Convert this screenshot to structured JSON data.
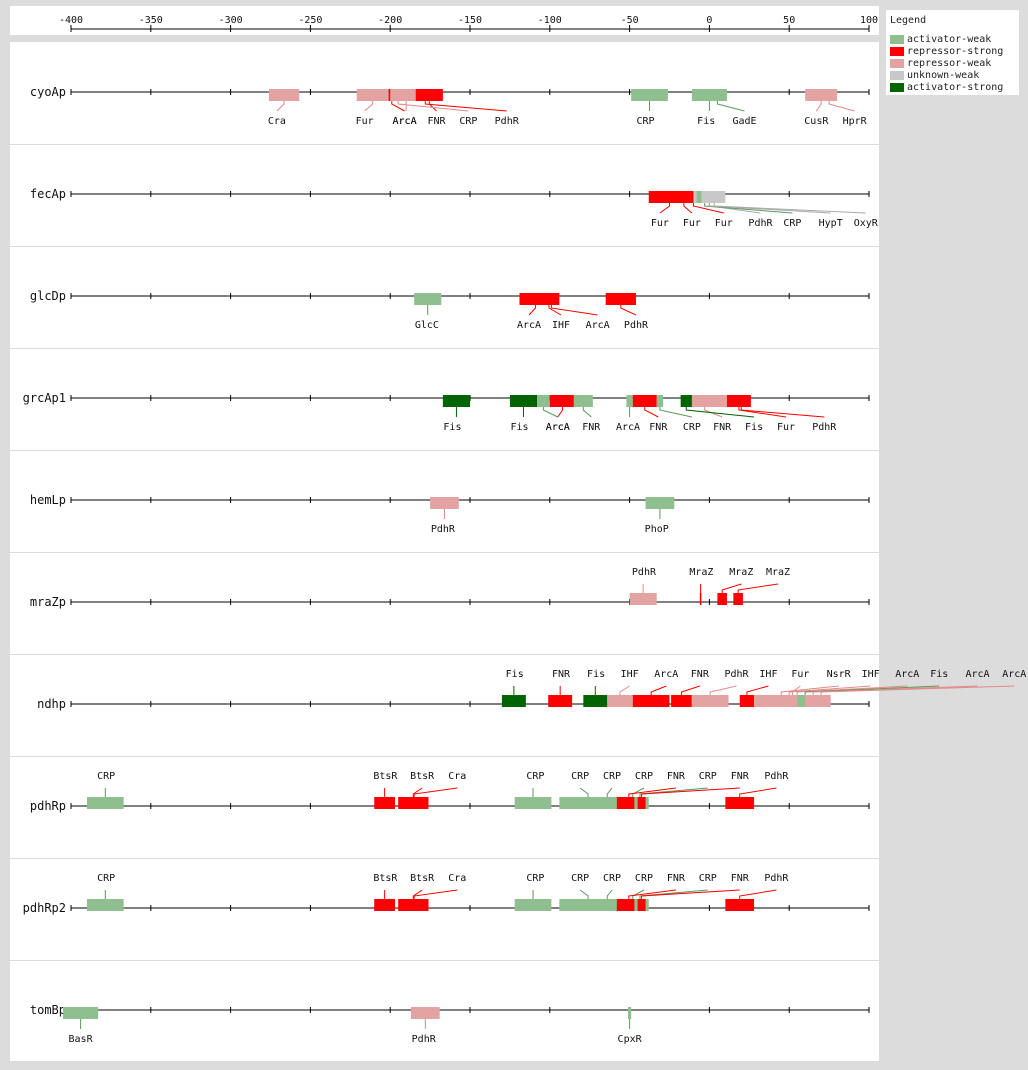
{
  "legend": {
    "title": "Legend",
    "items": [
      {
        "label": "activator-weak",
        "color": "#8fbf8f"
      },
      {
        "label": "repressor-strong",
        "color": "#ff0000"
      },
      {
        "label": "repressor-weak",
        "color": "#e3a3a3"
      },
      {
        "label": "unknown-weak",
        "color": "#c8c8c8"
      },
      {
        "label": "activator-strong",
        "color": "#006400"
      }
    ]
  },
  "axis": {
    "min": -400,
    "max": 100,
    "ticks": [
      -400,
      -350,
      -300,
      -250,
      -200,
      -150,
      -100,
      -50,
      0,
      50,
      100
    ]
  },
  "tracks": [
    {
      "name": "cyoAp",
      "sites": [
        {
          "tf": "Cra",
          "start": -276,
          "end": -257,
          "type": "repressor-weak",
          "label_pos": -271,
          "side": "below"
        },
        {
          "tf": "Fur",
          "start": -221,
          "end": -201,
          "type": "repressor-weak",
          "label_pos": -216,
          "side": "below"
        },
        {
          "tf": "ArcA",
          "start": -201,
          "end": -197,
          "type": "repressor-strong",
          "label_pos": -191,
          "side": "below"
        },
        {
          "tf": "ArcA",
          "start": -197,
          "end": -183,
          "type": "repressor-weak",
          "label_pos": -191,
          "side": "below"
        },
        {
          "tf": "FNR",
          "start": -184,
          "end": -167,
          "type": "repressor-strong",
          "label_pos": -171,
          "side": "below"
        },
        {
          "tf": "CRP",
          "start": -200,
          "end": -190,
          "type": "repressor-weak",
          "label_pos": -151,
          "side": "below"
        },
        {
          "tf": "PdhR",
          "start": -183,
          "end": -173,
          "type": "repressor-strong",
          "label_pos": -127,
          "side": "below"
        },
        {
          "tf": "CRP",
          "start": -49,
          "end": -26,
          "type": "activator-weak",
          "label_pos": -40,
          "side": "below"
        },
        {
          "tf": "Fis",
          "start": -11,
          "end": 11,
          "type": "activator-weak",
          "label_pos": -2,
          "side": "below"
        },
        {
          "tf": "GadE",
          "start": 0,
          "end": 10,
          "type": "activator-weak",
          "label_pos": 22,
          "side": "below"
        },
        {
          "tf": "CusR",
          "start": 60,
          "end": 80,
          "type": "repressor-weak",
          "label_pos": 67,
          "side": "below"
        },
        {
          "tf": "HprR",
          "start": 70,
          "end": 80,
          "type": "repressor-weak",
          "label_pos": 91,
          "side": "below"
        }
      ]
    },
    {
      "name": "fecAp",
      "sites": [
        {
          "tf": "Fur",
          "start": -38,
          "end": -12,
          "type": "repressor-strong",
          "label_pos": -31,
          "side": "below"
        },
        {
          "tf": "Fur",
          "start": -20,
          "end": -12,
          "type": "repressor-strong",
          "label_pos": -11,
          "side": "below"
        },
        {
          "tf": "Fur",
          "start": -12,
          "end": -8,
          "type": "repressor-strong",
          "label_pos": 9,
          "side": "below"
        },
        {
          "tf": "PdhR",
          "start": -10,
          "end": 10,
          "type": "unknown-weak",
          "label_pos": 32,
          "side": "below"
        },
        {
          "tf": "CRP",
          "start": -8,
          "end": 2,
          "type": "activator-weak",
          "label_pos": 52,
          "side": "below"
        },
        {
          "tf": "HypT",
          "start": -5,
          "end": 5,
          "type": "unknown-weak",
          "label_pos": 76,
          "side": "below"
        },
        {
          "tf": "OxyR",
          "start": -2,
          "end": 8,
          "type": "unknown-weak",
          "label_pos": 98,
          "side": "below"
        }
      ]
    },
    {
      "name": "glcDp",
      "sites": [
        {
          "tf": "GlcC",
          "start": -185,
          "end": -168,
          "type": "activator-weak",
          "label_pos": -177,
          "side": "below"
        },
        {
          "tf": "ArcA",
          "start": -119,
          "end": -99,
          "type": "repressor-strong",
          "label_pos": -113,
          "side": "below"
        },
        {
          "tf": "IHF",
          "start": -105,
          "end": -96,
          "type": "repressor-strong",
          "label_pos": -93,
          "side": "below"
        },
        {
          "tf": "ArcA",
          "start": -104,
          "end": -94,
          "type": "repressor-strong",
          "label_pos": -70,
          "side": "below"
        },
        {
          "tf": "PdhR",
          "start": -65,
          "end": -46,
          "type": "repressor-strong",
          "label_pos": -46,
          "side": "below"
        }
      ]
    },
    {
      "name": "grcAp1",
      "sites": [
        {
          "tf": "Fis",
          "start": -167,
          "end": -150,
          "type": "activator-strong",
          "label_pos": -161,
          "side": "below"
        },
        {
          "tf": "Fis",
          "start": -125,
          "end": -108,
          "type": "activator-strong",
          "label_pos": -119,
          "side": "below"
        },
        {
          "tf": "ArcA",
          "start": -108,
          "end": -100,
          "type": "activator-weak",
          "label_pos": -95,
          "side": "below"
        },
        {
          "tf": "ArcA",
          "start": -100,
          "end": -84,
          "type": "repressor-strong",
          "label_pos": -95,
          "side": "below"
        },
        {
          "tf": "FNR",
          "start": -85,
          "end": -73,
          "type": "activator-weak",
          "label_pos": -74,
          "side": "below"
        },
        {
          "tf": "ArcA",
          "start": -52,
          "end": -48,
          "type": "activator-weak",
          "label_pos": -51,
          "side": "below"
        },
        {
          "tf": "FNR",
          "start": -48,
          "end": -33,
          "type": "repressor-strong",
          "label_pos": -32,
          "side": "below"
        },
        {
          "tf": "CRP",
          "start": -33,
          "end": -29,
          "type": "activator-weak",
          "label_pos": -11,
          "side": "below"
        },
        {
          "tf": "FNR",
          "start": -17,
          "end": 11,
          "type": "repressor-weak",
          "label_pos": 8,
          "side": "below"
        },
        {
          "tf": "Fis",
          "start": -18,
          "end": -11,
          "type": "activator-strong",
          "label_pos": 28,
          "side": "below"
        },
        {
          "tf": "Fur",
          "start": 11,
          "end": 26,
          "type": "repressor-strong",
          "label_pos": 48,
          "side": "below"
        },
        {
          "tf": "PdhR",
          "start": 15,
          "end": 25,
          "type": "repressor-strong",
          "label_pos": 72,
          "side": "below"
        }
      ]
    },
    {
      "name": "hemLp",
      "sites": [
        {
          "tf": "PdhR",
          "start": -175,
          "end": -157,
          "type": "repressor-weak",
          "label_pos": -167,
          "side": "below"
        },
        {
          "tf": "PhoP",
          "start": -40,
          "end": -22,
          "type": "activator-weak",
          "label_pos": -33,
          "side": "below"
        }
      ]
    },
    {
      "name": "mraZp",
      "sites": [
        {
          "tf": "PdhR",
          "start": -50,
          "end": -33,
          "type": "repressor-weak",
          "label_pos": -41,
          "side": "above"
        },
        {
          "tf": "MraZ",
          "start": -6,
          "end": -5,
          "type": "repressor-strong",
          "label_pos": -5,
          "side": "above"
        },
        {
          "tf": "MraZ",
          "start": 5,
          "end": 11,
          "type": "repressor-strong",
          "label_pos": 20,
          "side": "above"
        },
        {
          "tf": "MraZ",
          "start": 15,
          "end": 21,
          "type": "repressor-strong",
          "label_pos": 43,
          "side": "above"
        }
      ]
    },
    {
      "name": "ndhp",
      "sites": [
        {
          "tf": "Fis",
          "start": -130,
          "end": -115,
          "type": "activator-strong",
          "label_pos": -122,
          "side": "above"
        },
        {
          "tf": "FNR",
          "start": -101,
          "end": -86,
          "type": "repressor-strong",
          "label_pos": -93,
          "side": "above"
        },
        {
          "tf": "Fis",
          "start": -79,
          "end": -64,
          "type": "activator-strong",
          "label_pos": -71,
          "side": "above"
        },
        {
          "tf": "IHF",
          "start": -64,
          "end": -48,
          "type": "repressor-weak",
          "label_pos": -50,
          "side": "above"
        },
        {
          "tf": "ArcA",
          "start": -48,
          "end": -25,
          "type": "repressor-strong",
          "label_pos": -27,
          "side": "above"
        },
        {
          "tf": "FNR",
          "start": -24,
          "end": -11,
          "type": "repressor-strong",
          "label_pos": -6,
          "side": "above"
        },
        {
          "tf": "PdhR",
          "start": -11,
          "end": 12,
          "type": "repressor-weak",
          "label_pos": 17,
          "side": "above"
        },
        {
          "tf": "IHF",
          "start": 19,
          "end": 28,
          "type": "repressor-strong",
          "label_pos": 37,
          "side": "above"
        },
        {
          "tf": "Fur",
          "start": 28,
          "end": 76,
          "type": "repressor-weak",
          "label_pos": 57,
          "side": "above"
        },
        {
          "tf": "NsrR",
          "start": 40,
          "end": 50,
          "type": "repressor-weak",
          "label_pos": 81,
          "side": "above"
        },
        {
          "tf": "IHF",
          "start": 45,
          "end": 55,
          "type": "repressor-weak",
          "label_pos": 101,
          "side": "above"
        },
        {
          "tf": "ArcA",
          "start": 50,
          "end": 60,
          "type": "repressor-weak",
          "label_pos": 124,
          "side": "above"
        },
        {
          "tf": "Fis",
          "start": 55,
          "end": 65,
          "type": "activator-weak",
          "label_pos": 144,
          "side": "above"
        },
        {
          "tf": "ArcA",
          "start": 60,
          "end": 70,
          "type": "repressor-weak",
          "label_pos": 168,
          "side": "above"
        },
        {
          "tf": "ArcA",
          "start": 65,
          "end": 75,
          "type": "repressor-weak",
          "label_pos": 191,
          "side": "above"
        }
      ]
    },
    {
      "name": "pdhRp",
      "sites": [
        {
          "tf": "CRP",
          "start": -390,
          "end": -367,
          "type": "activator-weak",
          "label_pos": -378,
          "side": "above"
        },
        {
          "tf": "BtsR",
          "start": -210,
          "end": -197,
          "type": "repressor-strong",
          "label_pos": -203,
          "side": "above"
        },
        {
          "tf": "BtsR",
          "start": -195,
          "end": -176,
          "type": "repressor-strong",
          "label_pos": -180,
          "side": "above"
        },
        {
          "tf": "Cra",
          "start": -190,
          "end": -180,
          "type": "repressor-strong",
          "label_pos": -158,
          "side": "above"
        },
        {
          "tf": "CRP",
          "start": -122,
          "end": -99,
          "type": "activator-weak",
          "label_pos": -109,
          "side": "above"
        },
        {
          "tf": "CRP",
          "start": -94,
          "end": -58,
          "type": "activator-weak",
          "label_pos": -81,
          "side": "above"
        },
        {
          "tf": "CRP",
          "start": -70,
          "end": -58,
          "type": "activator-weak",
          "label_pos": -61,
          "side": "above"
        },
        {
          "tf": "CRP",
          "start": -58,
          "end": -38,
          "type": "activator-weak",
          "label_pos": -41,
          "side": "above"
        },
        {
          "tf": "FNR",
          "start": -58,
          "end": -43,
          "type": "repressor-strong",
          "label_pos": -21,
          "side": "above"
        },
        {
          "tf": "CRP",
          "start": -47,
          "end": -40,
          "type": "activator-weak",
          "label_pos": -1,
          "side": "above"
        },
        {
          "tf": "FNR",
          "start": -45,
          "end": -40,
          "type": "repressor-strong",
          "label_pos": 19,
          "side": "above"
        },
        {
          "tf": "PdhR",
          "start": 10,
          "end": 28,
          "type": "repressor-strong",
          "label_pos": 42,
          "side": "above"
        }
      ]
    },
    {
      "name": "pdhRp2",
      "sites": [
        {
          "tf": "CRP",
          "start": -390,
          "end": -367,
          "type": "activator-weak",
          "label_pos": -378,
          "side": "above"
        },
        {
          "tf": "BtsR",
          "start": -210,
          "end": -197,
          "type": "repressor-strong",
          "label_pos": -203,
          "side": "above"
        },
        {
          "tf": "BtsR",
          "start": -195,
          "end": -176,
          "type": "repressor-strong",
          "label_pos": -180,
          "side": "above"
        },
        {
          "tf": "Cra",
          "start": -190,
          "end": -180,
          "type": "repressor-strong",
          "label_pos": -158,
          "side": "above"
        },
        {
          "tf": "CRP",
          "start": -122,
          "end": -99,
          "type": "activator-weak",
          "label_pos": -109,
          "side": "above"
        },
        {
          "tf": "CRP",
          "start": -94,
          "end": -58,
          "type": "activator-weak",
          "label_pos": -81,
          "side": "above"
        },
        {
          "tf": "CRP",
          "start": -70,
          "end": -58,
          "type": "activator-weak",
          "label_pos": -61,
          "side": "above"
        },
        {
          "tf": "CRP",
          "start": -58,
          "end": -38,
          "type": "activator-weak",
          "label_pos": -41,
          "side": "above"
        },
        {
          "tf": "FNR",
          "start": -58,
          "end": -43,
          "type": "repressor-strong",
          "label_pos": -21,
          "side": "above"
        },
        {
          "tf": "CRP",
          "start": -47,
          "end": -40,
          "type": "activator-weak",
          "label_pos": -1,
          "side": "above"
        },
        {
          "tf": "FNR",
          "start": -45,
          "end": -40,
          "type": "repressor-strong",
          "label_pos": 19,
          "side": "above"
        },
        {
          "tf": "PdhR",
          "start": 10,
          "end": 28,
          "type": "repressor-strong",
          "label_pos": 42,
          "side": "above"
        }
      ]
    },
    {
      "name": "tomBp",
      "sites": [
        {
          "tf": "BasR",
          "start": -405,
          "end": -383,
          "type": "activator-weak",
          "label_pos": -394,
          "side": "below"
        },
        {
          "tf": "PdhR",
          "start": -187,
          "end": -169,
          "type": "repressor-weak",
          "label_pos": -179,
          "side": "below"
        },
        {
          "tf": "CpxR",
          "start": -51,
          "end": -49,
          "type": "activator-weak",
          "label_pos": -50,
          "side": "below"
        }
      ]
    }
  ]
}
